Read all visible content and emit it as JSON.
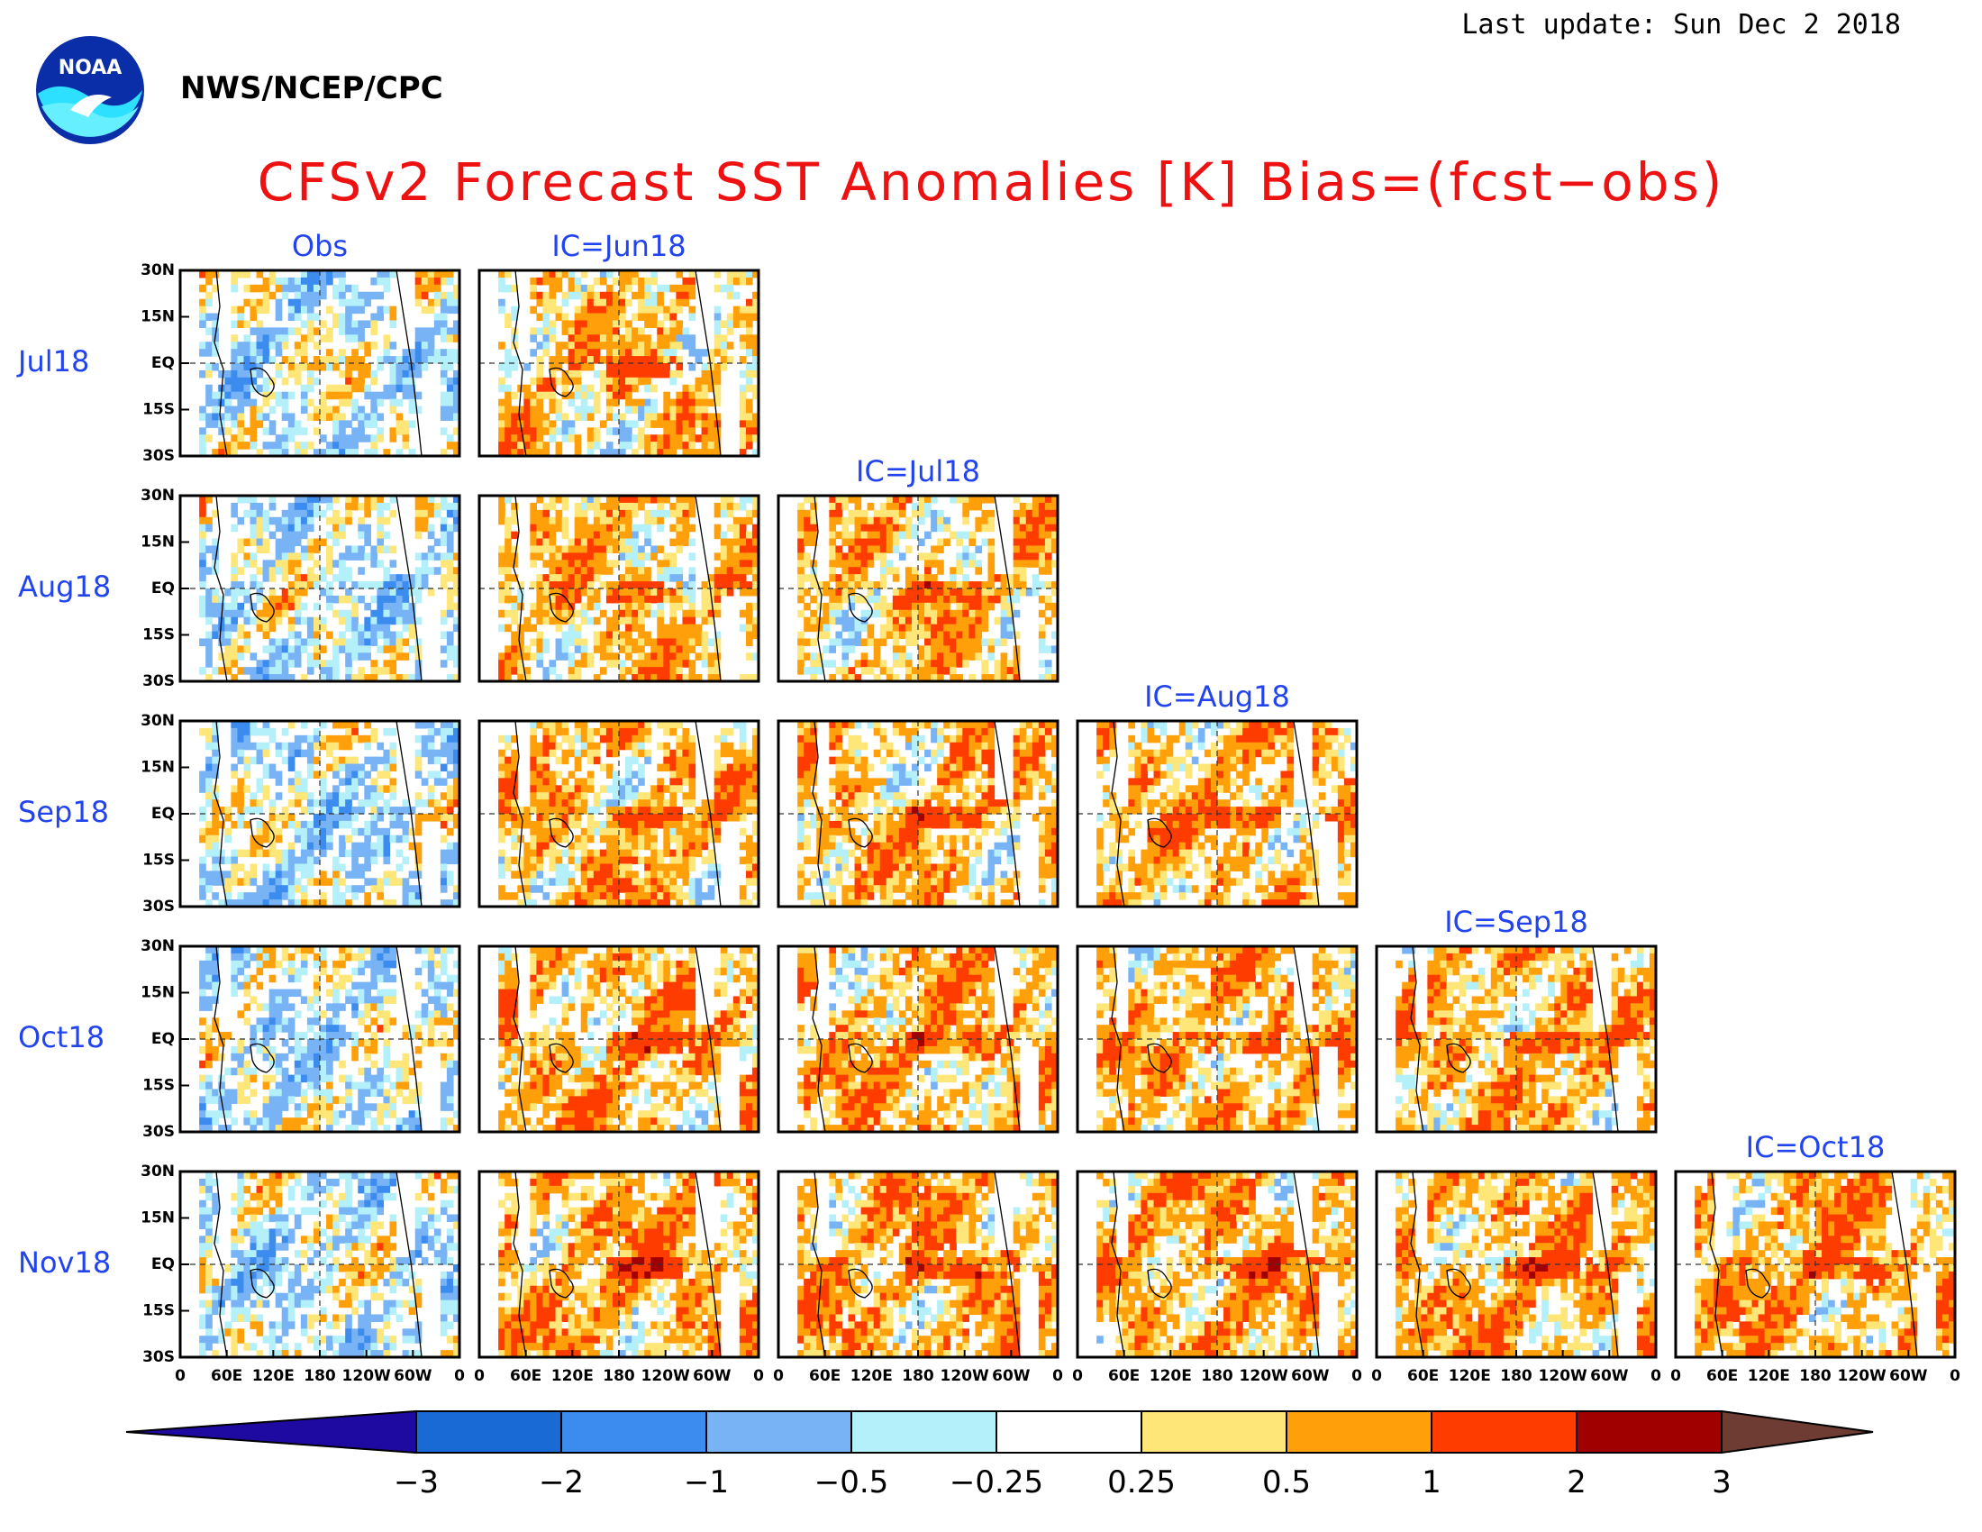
{
  "header": {
    "last_update": "Last update: Sun Dec 2 2018",
    "org": "NWS/NCEP/CPC",
    "logo_text": "NOAA",
    "title": "CFSv2 Forecast SST Anomalies [K] Bias=(fcst−obs)"
  },
  "colors": {
    "title": "#ee1111",
    "labels": "#2244ee",
    "palette": [
      "#1e0aa0",
      "#1a6ad6",
      "#3c8cf0",
      "#78b4f5",
      "#b4f0fa",
      "#ffffff",
      "#ffe678",
      "#ffa00a",
      "#ff3c00",
      "#a00000",
      "#6e3c32"
    ]
  },
  "chart_data": {
    "type": "heatmap",
    "title": "CFSv2 Forecast SST Anomalies [K] Bias=(fcst−obs)",
    "columns": [
      "Obs",
      "IC=Jun18",
      "IC=Jul18",
      "IC=Aug18",
      "IC=Sep18",
      "IC=Oct18"
    ],
    "rows": [
      "Jul18",
      "Aug18",
      "Sep18",
      "Oct18",
      "Nov18"
    ],
    "lat_ticks": [
      "30N",
      "15N",
      "EQ",
      "15S",
      "30S"
    ],
    "lon_ticks": [
      "0",
      "60E",
      "120E",
      "180",
      "120W",
      "60W",
      "0"
    ],
    "x_range": [
      0,
      360
    ],
    "y_range": [
      -30,
      30
    ],
    "colorbar": {
      "ticks": [
        "−3",
        "−2",
        "−1",
        "−0.5",
        "−0.25",
        "0.25",
        "0.5",
        "1",
        "2",
        "3"
      ],
      "colors": [
        "#1e0aa0",
        "#1a6ad6",
        "#3c8cf0",
        "#78b4f5",
        "#b4f0fa",
        "#ffffff",
        "#ffe678",
        "#ffa00a",
        "#ff3c00",
        "#a00000",
        "#6e3c32"
      ]
    },
    "panels_per_row": [
      2,
      3,
      4,
      5,
      6
    ]
  }
}
